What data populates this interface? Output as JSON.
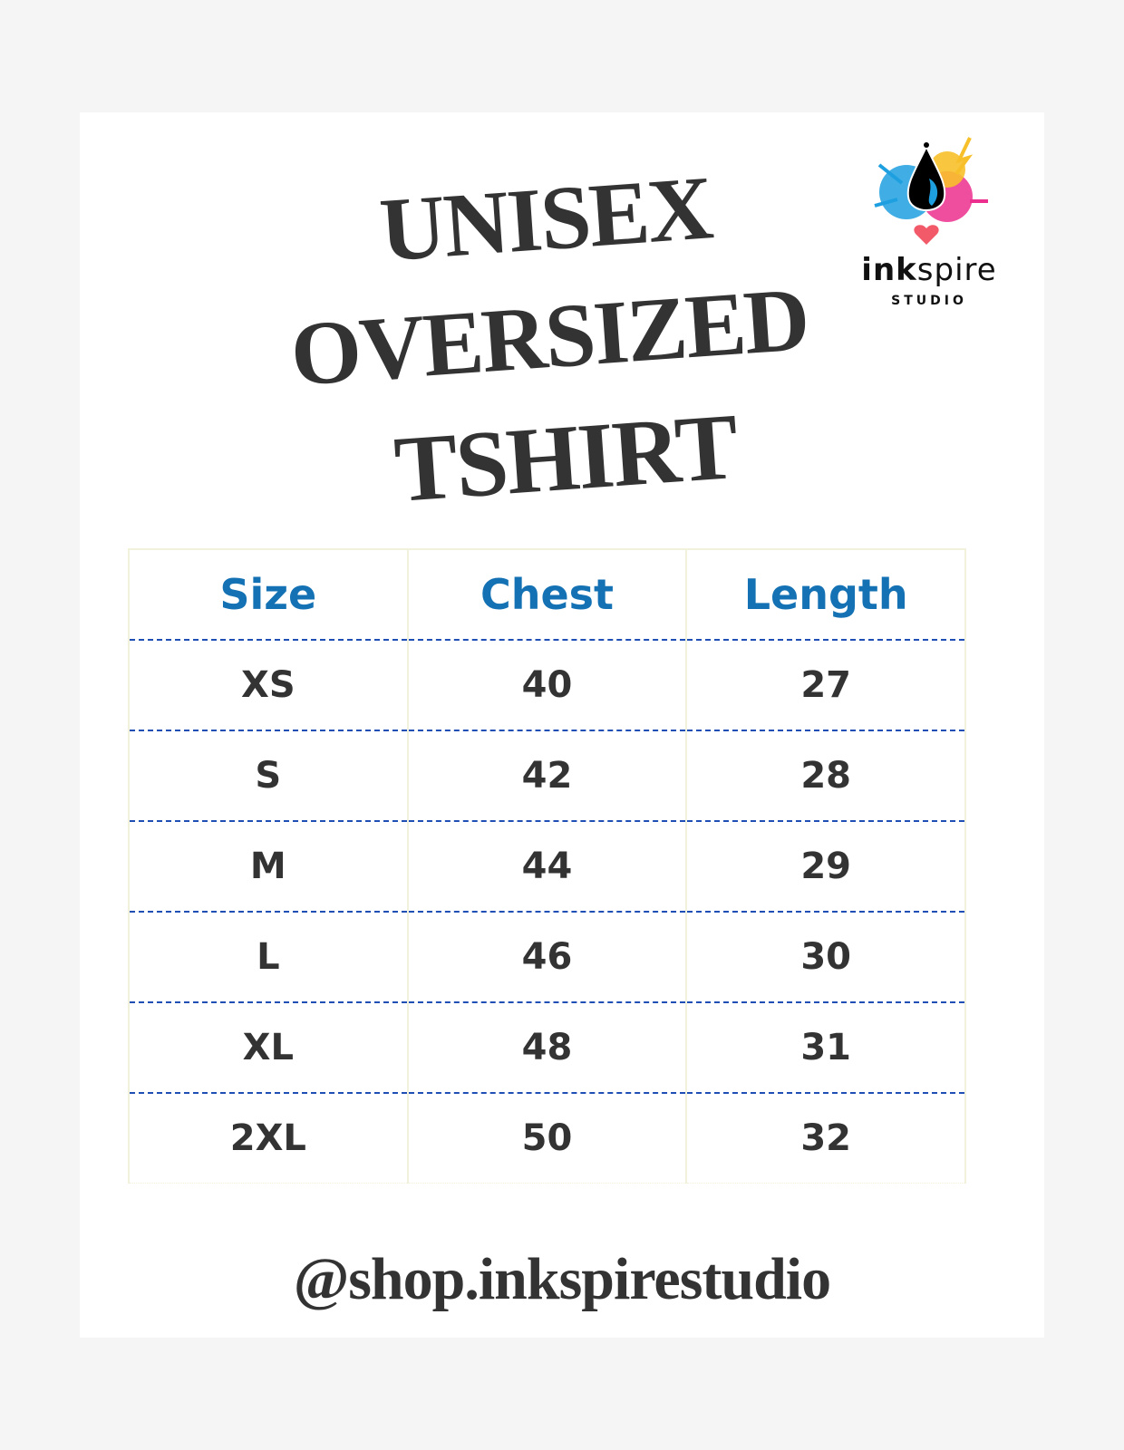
{
  "title": {
    "line1": "UNISEX",
    "line2": "OVERSIZED",
    "line3": "TSHIRT"
  },
  "logo": {
    "word_bold": "ink",
    "word_light": "spire",
    "sub": "STUDIO"
  },
  "table": {
    "headers": [
      "Size",
      "Chest",
      "Length"
    ],
    "rows": [
      [
        "XS",
        "40",
        "27"
      ],
      [
        "S",
        "42",
        "28"
      ],
      [
        "M",
        "44",
        "29"
      ],
      [
        "L",
        "46",
        "30"
      ],
      [
        "XL",
        "48",
        "31"
      ],
      [
        "2XL",
        "50",
        "32"
      ]
    ]
  },
  "footer": {
    "handle": "@shop.inkspirestudio"
  },
  "colors": {
    "header": "#1472b4",
    "divider": "#1f4fb5",
    "text": "#333333",
    "background": "#f5f5f5"
  }
}
